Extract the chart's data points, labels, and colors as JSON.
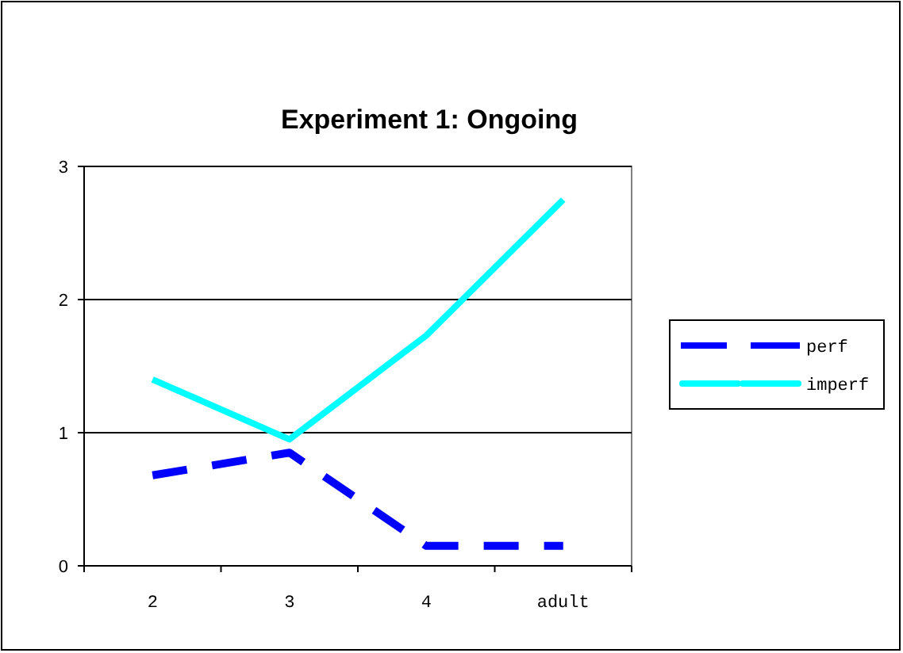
{
  "chart_data": {
    "type": "line",
    "title": "Experiment 1: Ongoing",
    "categories": [
      "2",
      "3",
      "4",
      "adult"
    ],
    "series": [
      {
        "name": "perf",
        "color": "#0000ff",
        "values": [
          0.68,
          0.85,
          0.15,
          0.15
        ],
        "line_style": "dashed"
      },
      {
        "name": "imperf",
        "color": "#00ffff",
        "values": [
          1.4,
          0.95,
          1.73,
          2.75
        ],
        "line_style": "solid"
      }
    ],
    "ylim": [
      0,
      3
    ],
    "yticks": [
      0,
      1,
      2,
      3
    ],
    "grid": "y",
    "legend": "right",
    "marker": "none"
  }
}
